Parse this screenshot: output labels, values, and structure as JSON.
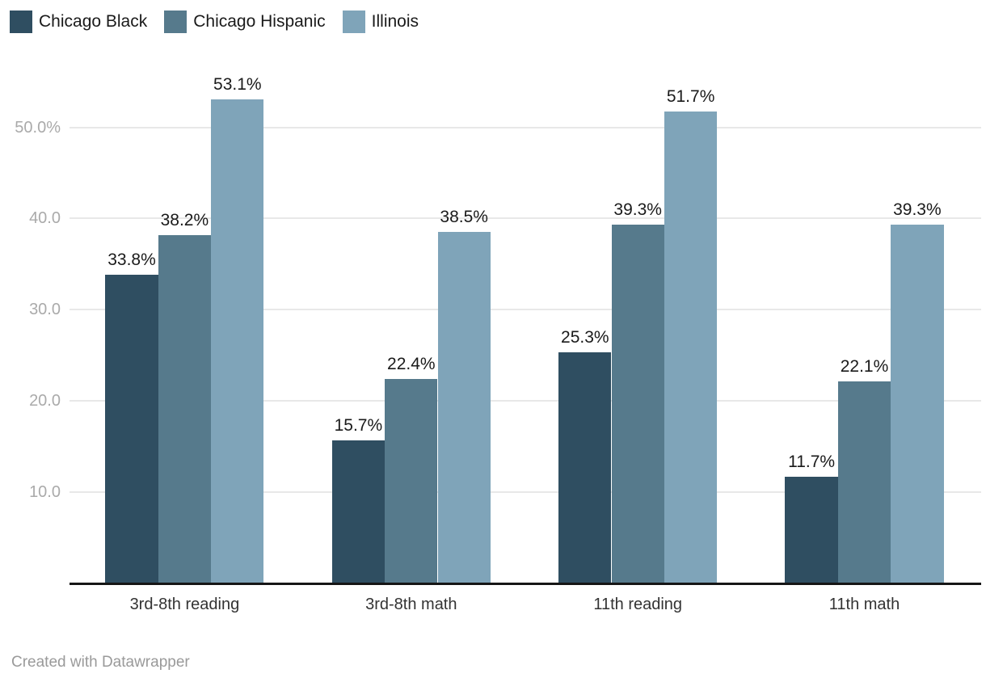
{
  "legend": {
    "items": [
      {
        "label": "Chicago Black",
        "color": "#2f4e61"
      },
      {
        "label": "Chicago Hispanic",
        "color": "#567a8c"
      },
      {
        "label": "Illinois",
        "color": "#7fa4b9"
      }
    ]
  },
  "chart_data": {
    "type": "bar",
    "title": "",
    "categories": [
      "3rd-8th reading",
      "3rd-8th math",
      "11th reading",
      "11th math"
    ],
    "series": [
      {
        "name": "Chicago Black",
        "color": "#2f4e61",
        "values": [
          33.8,
          15.7,
          25.3,
          11.7
        ]
      },
      {
        "name": "Chicago Hispanic",
        "color": "#567a8c",
        "values": [
          38.2,
          22.4,
          39.3,
          22.1
        ]
      },
      {
        "name": "Illinois",
        "color": "#7fa4b9",
        "values": [
          53.1,
          38.5,
          51.7,
          39.3
        ]
      }
    ],
    "value_suffix": "%",
    "data_labels": true,
    "xlabel": "",
    "ylabel": "",
    "ylim": [
      0,
      57
    ],
    "y_axis": {
      "ticks": [
        {
          "value": 10,
          "label": "10.0"
        },
        {
          "value": 20,
          "label": "20.0"
        },
        {
          "value": 30,
          "label": "30.0"
        },
        {
          "value": 40,
          "label": "40.0"
        },
        {
          "value": 50,
          "label": "50.0%"
        }
      ]
    },
    "grid": "horizontal",
    "legend_position": "top-left"
  },
  "footer": {
    "credit": "Created with Datawrapper"
  },
  "colors": {
    "background": "#ffffff",
    "gridline": "#e8e8e8",
    "axis_line": "#161616",
    "tick_label": "#aaaaaa",
    "data_label": "#1a1a1a",
    "category_label": "#333333",
    "credit": "#9a9a9a"
  }
}
